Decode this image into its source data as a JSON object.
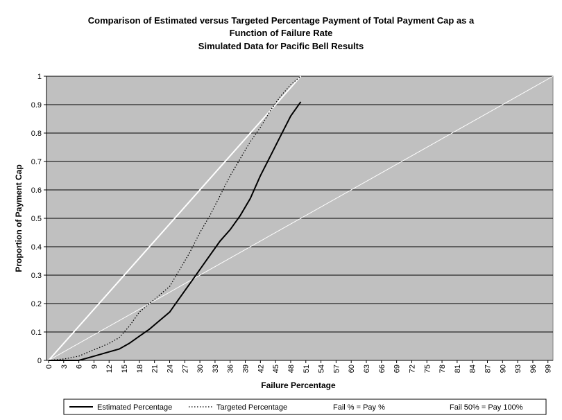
{
  "chart_data": {
    "type": "line",
    "title": [
      "Comparison of Estimated versus Targeted Percentage Payment of Total Payment Cap as a",
      "Function of Failure Rate",
      "Simulated Data for Pacific Bell Results"
    ],
    "x_label": "Failure Percentage",
    "y_label": "Proportion of Payment Cap",
    "xlim": [
      0,
      100
    ],
    "ylim": [
      0,
      1
    ],
    "xticks": [
      0,
      3,
      6,
      9,
      12,
      15,
      18,
      21,
      24,
      27,
      30,
      33,
      36,
      39,
      42,
      45,
      48,
      51,
      54,
      57,
      60,
      63,
      66,
      69,
      72,
      75,
      78,
      81,
      84,
      87,
      90,
      93,
      96,
      99
    ],
    "yticks": [
      0,
      0.1,
      0.2,
      0.3,
      0.4,
      0.5,
      0.6,
      0.7,
      0.8,
      0.9,
      1
    ],
    "grid": true,
    "background": "#c0c0c0",
    "legend": "bottom",
    "series": [
      {
        "name": "Estimated Percentage",
        "color": "#000000",
        "line_width": 2,
        "dash": "solid",
        "x": [
          0,
          3,
          6,
          7,
          9,
          12,
          14,
          16,
          18,
          20,
          22,
          24,
          26,
          28,
          30,
          32,
          34,
          36,
          38,
          40,
          42,
          44,
          46,
          48,
          50
        ],
        "values": [
          0,
          0,
          0,
          0.005,
          0.015,
          0.03,
          0.04,
          0.06,
          0.085,
          0.11,
          0.14,
          0.17,
          0.22,
          0.27,
          0.32,
          0.37,
          0.42,
          0.46,
          0.51,
          0.57,
          0.65,
          0.72,
          0.79,
          0.86,
          0.91
        ]
      },
      {
        "name": "Targeted Percentage",
        "color": "#000000",
        "line_width": 1.3,
        "dash": "dotted",
        "x": [
          0,
          3,
          6,
          8,
          10,
          12,
          14,
          16,
          18,
          20,
          22,
          24,
          26,
          28,
          30,
          32,
          34,
          36,
          38,
          40,
          42,
          44,
          46,
          48,
          50
        ],
        "values": [
          0,
          0.005,
          0.015,
          0.03,
          0.045,
          0.06,
          0.08,
          0.12,
          0.17,
          0.2,
          0.23,
          0.26,
          0.32,
          0.38,
          0.45,
          0.51,
          0.58,
          0.65,
          0.71,
          0.77,
          0.82,
          0.88,
          0.93,
          0.97,
          1
        ]
      },
      {
        "name": "Fail % = Pay %",
        "color": "#ffffff",
        "line_width": 1,
        "dash": "solid",
        "x": [
          0,
          100
        ],
        "values": [
          0,
          1
        ]
      },
      {
        "name": "Fail 50% = Pay 100%",
        "color": "#ffffff",
        "line_width": 2,
        "dash": "solid",
        "x": [
          0,
          50
        ],
        "values": [
          0,
          1
        ]
      }
    ]
  }
}
